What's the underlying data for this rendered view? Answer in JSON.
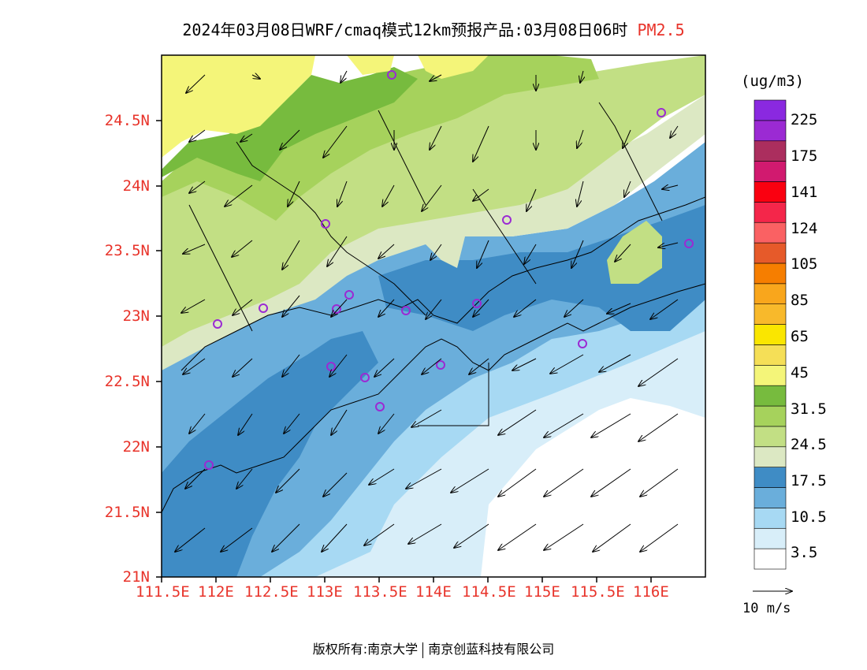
{
  "title": {
    "main": "2024年03月08日WRF/cmaq模式12km预报产品:03月08日06时",
    "species": "PM2.5"
  },
  "axes": {
    "lat_labels": [
      "24.5N",
      "24N",
      "23.5N",
      "23N",
      "22.5N",
      "22N",
      "21.5N",
      "21N"
    ],
    "lon_labels": [
      "111.5E",
      "112E",
      "112.5E",
      "113E",
      "113.5E",
      "114E",
      "114.5E",
      "115E",
      "115.5E",
      "116E"
    ]
  },
  "colorbar": {
    "unit": "(ug/m3)",
    "colors": [
      "#ffffff",
      "#d8eef9",
      "#a7d9f3",
      "#6aaedb",
      "#3f8cc5",
      "#dce8c3",
      "#c2df84",
      "#a6d25c",
      "#77bb3e",
      "#f4f579",
      "#f5df57",
      "#fae600",
      "#f8b92b",
      "#f9a61c",
      "#f67e00",
      "#e65a2a",
      "#fa6163",
      "#f4264a",
      "#fa0010",
      "#d11a6f",
      "#ab2e5e",
      "#9b2ad3",
      "#8a29e0"
    ],
    "labels": [
      "3.5",
      "10.5",
      "17.5",
      "24.5",
      "31.5",
      "45",
      "65",
      "85",
      "105",
      "124",
      "141",
      "175",
      "225"
    ]
  },
  "wind_reference": {
    "label": "10 m/s"
  },
  "copyright": {
    "owner": "版权所有:南京大学",
    "company": "南京创蓝科技有限公司"
  }
}
